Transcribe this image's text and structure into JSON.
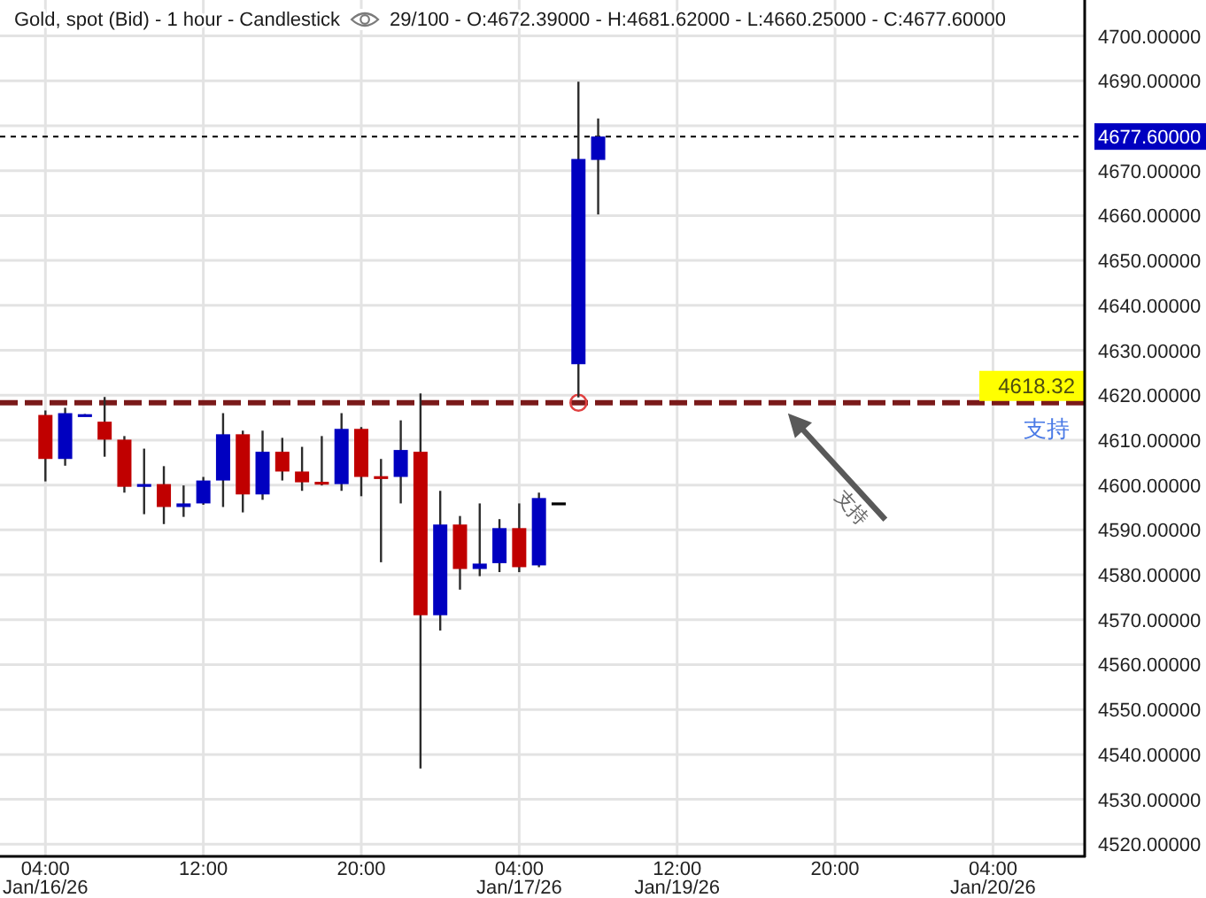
{
  "chart_data": {
    "type": "candlestick",
    "title": "Gold, spot (Bid) - 1 hour - Candlestick",
    "subtitle": "29/100 - O:4672.39000 - H:4681.62000 - L:4660.25000 - C:4677.60000",
    "categories": [
      "04:00\nJan/16/26",
      null,
      null,
      null,
      null,
      null,
      null,
      null,
      "12:00",
      null,
      null,
      null,
      null,
      null,
      null,
      null,
      "20:00",
      null,
      null,
      null,
      null,
      null,
      null,
      null,
      "04:00\nJan/17/26",
      null,
      null,
      null,
      null,
      null,
      null,
      null,
      "12:00\nJan/19/26",
      null,
      null,
      null,
      null,
      null,
      null,
      null,
      "20:00",
      null,
      null,
      null,
      null,
      null,
      null,
      null,
      "04:00\nJan/20/26",
      null,
      null,
      null,
      null
    ],
    "ohlc": [
      [
        4615.6,
        4616.6,
        4600.8,
        4605.8
      ],
      [
        4605.8,
        4617.2,
        4604.3,
        4616.0
      ],
      [
        4615.3,
        4615.8,
        4615.3,
        4615.6
      ],
      [
        4614.1,
        4619.6,
        4606.3,
        4610.1
      ],
      [
        4610.1,
        4610.9,
        4598.3,
        4599.6
      ],
      [
        4599.6,
        4608.1,
        4593.5,
        4600.2
      ],
      [
        4600.2,
        4604.2,
        4591.3,
        4595.1
      ],
      [
        4595.1,
        4599.9,
        4592.9,
        4595.9
      ],
      [
        4595.9,
        4601.8,
        4595.6,
        4601.0
      ],
      [
        4601.0,
        4616.0,
        4595.1,
        4611.3
      ],
      [
        4611.3,
        4612.1,
        4593.9,
        4597.9
      ],
      [
        4597.9,
        4612.1,
        4596.7,
        4607.4
      ],
      [
        4607.4,
        4610.5,
        4601.0,
        4603.0
      ],
      [
        4603.0,
        4608.5,
        4598.7,
        4600.6
      ],
      [
        4600.6,
        4610.9,
        4599.9,
        4600.2
      ],
      [
        4600.2,
        4616.0,
        4598.7,
        4612.5
      ],
      [
        4612.5,
        4612.9,
        4597.5,
        4601.8
      ],
      [
        4601.8,
        4605.8,
        4582.8,
        4601.5
      ],
      [
        4601.8,
        4614.4,
        4595.9,
        4607.8
      ],
      [
        4607.4,
        4620.4,
        4536.9,
        4571.0
      ],
      [
        4571.0,
        4598.7,
        4567.6,
        4591.2
      ],
      [
        4591.2,
        4593.1,
        4576.7,
        4581.3
      ],
      [
        4581.3,
        4595.9,
        4579.7,
        4582.5
      ],
      [
        4582.6,
        4592.4,
        4580.6,
        4590.4
      ],
      [
        4590.4,
        4595.9,
        4580.6,
        4581.7
      ],
      [
        4582.1,
        4598.3,
        4581.7,
        4597.1
      ],
      [
        4595.8,
        4595.8,
        4595.8,
        4595.8
      ],
      [
        4626.9,
        4689.8,
        4619.5,
        4672.6
      ],
      [
        4672.39,
        4681.62,
        4660.25,
        4677.6
      ],
      null,
      null,
      null,
      null,
      null,
      null,
      null,
      null,
      null,
      null,
      null,
      null,
      null,
      null,
      null,
      null,
      null,
      null,
      null,
      null,
      null,
      null,
      null,
      null
    ],
    "colors": [
      "#c00000",
      "#0000c0",
      "#0000c0",
      "#c00000",
      "#c00000",
      "#0000c0",
      "#c00000",
      "#0000c0",
      "#0000c0",
      "#0000c0",
      "#c00000",
      "#0000c0",
      "#c00000",
      "#c00000",
      "#c00000",
      "#0000c0",
      "#c00000",
      "#c00000",
      "#0000c0",
      "#c00000",
      "#0000c0",
      "#c00000",
      "#0000c0",
      "#0000c0",
      "#c00000",
      "#0000c0",
      "#000000",
      "#0000c0",
      "#0000c0",
      null,
      null,
      null,
      null,
      null,
      null,
      null,
      null,
      null,
      null,
      null,
      null,
      null,
      null,
      null,
      null,
      null,
      null,
      null,
      null,
      null,
      null,
      null,
      null
    ],
    "series": [
      {
        "type": "scatter",
        "color": "#e04040",
        "marker": "circle",
        "values": [
          null,
          null,
          null,
          null,
          null,
          null,
          null,
          null,
          null,
          null,
          null,
          null,
          null,
          null,
          null,
          null,
          null,
          null,
          null,
          null,
          null,
          null,
          null,
          null,
          null,
          null,
          null,
          4618.32,
          null,
          null,
          null,
          null,
          null,
          null,
          null,
          null,
          null,
          null,
          null,
          null,
          null,
          null,
          null,
          null,
          null,
          null,
          null,
          null,
          null,
          null,
          null,
          null,
          null
        ]
      }
    ],
    "ylim": [
      4517.5,
      4708
    ],
    "yticks": [
      {
        "value": 4520,
        "label": "4520.00000"
      },
      {
        "value": 4530,
        "label": "4530.00000"
      },
      {
        "value": 4540,
        "label": "4540.00000"
      },
      {
        "value": 4550,
        "label": "4550.00000"
      },
      {
        "value": 4560,
        "label": "4560.00000"
      },
      {
        "value": 4570,
        "label": "4570.00000"
      },
      {
        "value": 4580,
        "label": "4580.00000"
      },
      {
        "value": 4590,
        "label": "4590.00000"
      },
      {
        "value": 4600,
        "label": "4600.00000"
      },
      {
        "value": 4610,
        "label": "4610.00000"
      },
      {
        "value": 4620,
        "label": "4620.00000"
      },
      {
        "value": 4630,
        "label": "4630.00000"
      },
      {
        "value": 4640,
        "label": "4640.00000"
      },
      {
        "value": 4650,
        "label": "4650.00000"
      },
      {
        "value": 4660,
        "label": "4660.00000"
      },
      {
        "value": 4670,
        "label": "4670.00000"
      },
      {
        "value": 4680,
        "label": null
      },
      {
        "value": 4690,
        "label": "4690.00000"
      },
      {
        "value": 4700,
        "label": "4700.00000"
      }
    ],
    "grid": true,
    "ref_lines": [
      {
        "axis": "y",
        "value": 4618.32,
        "label": "支持",
        "color": "#7a1a1a",
        "line_style": "dashed"
      },
      {
        "axis": "y",
        "value": 4677.6,
        "label": "4677.60000",
        "color": "#000000",
        "line_style": "dotted"
      }
    ],
    "annotations": [
      {
        "text": "4618.32",
        "y": 4618.32
      },
      "支持"
    ]
  }
}
